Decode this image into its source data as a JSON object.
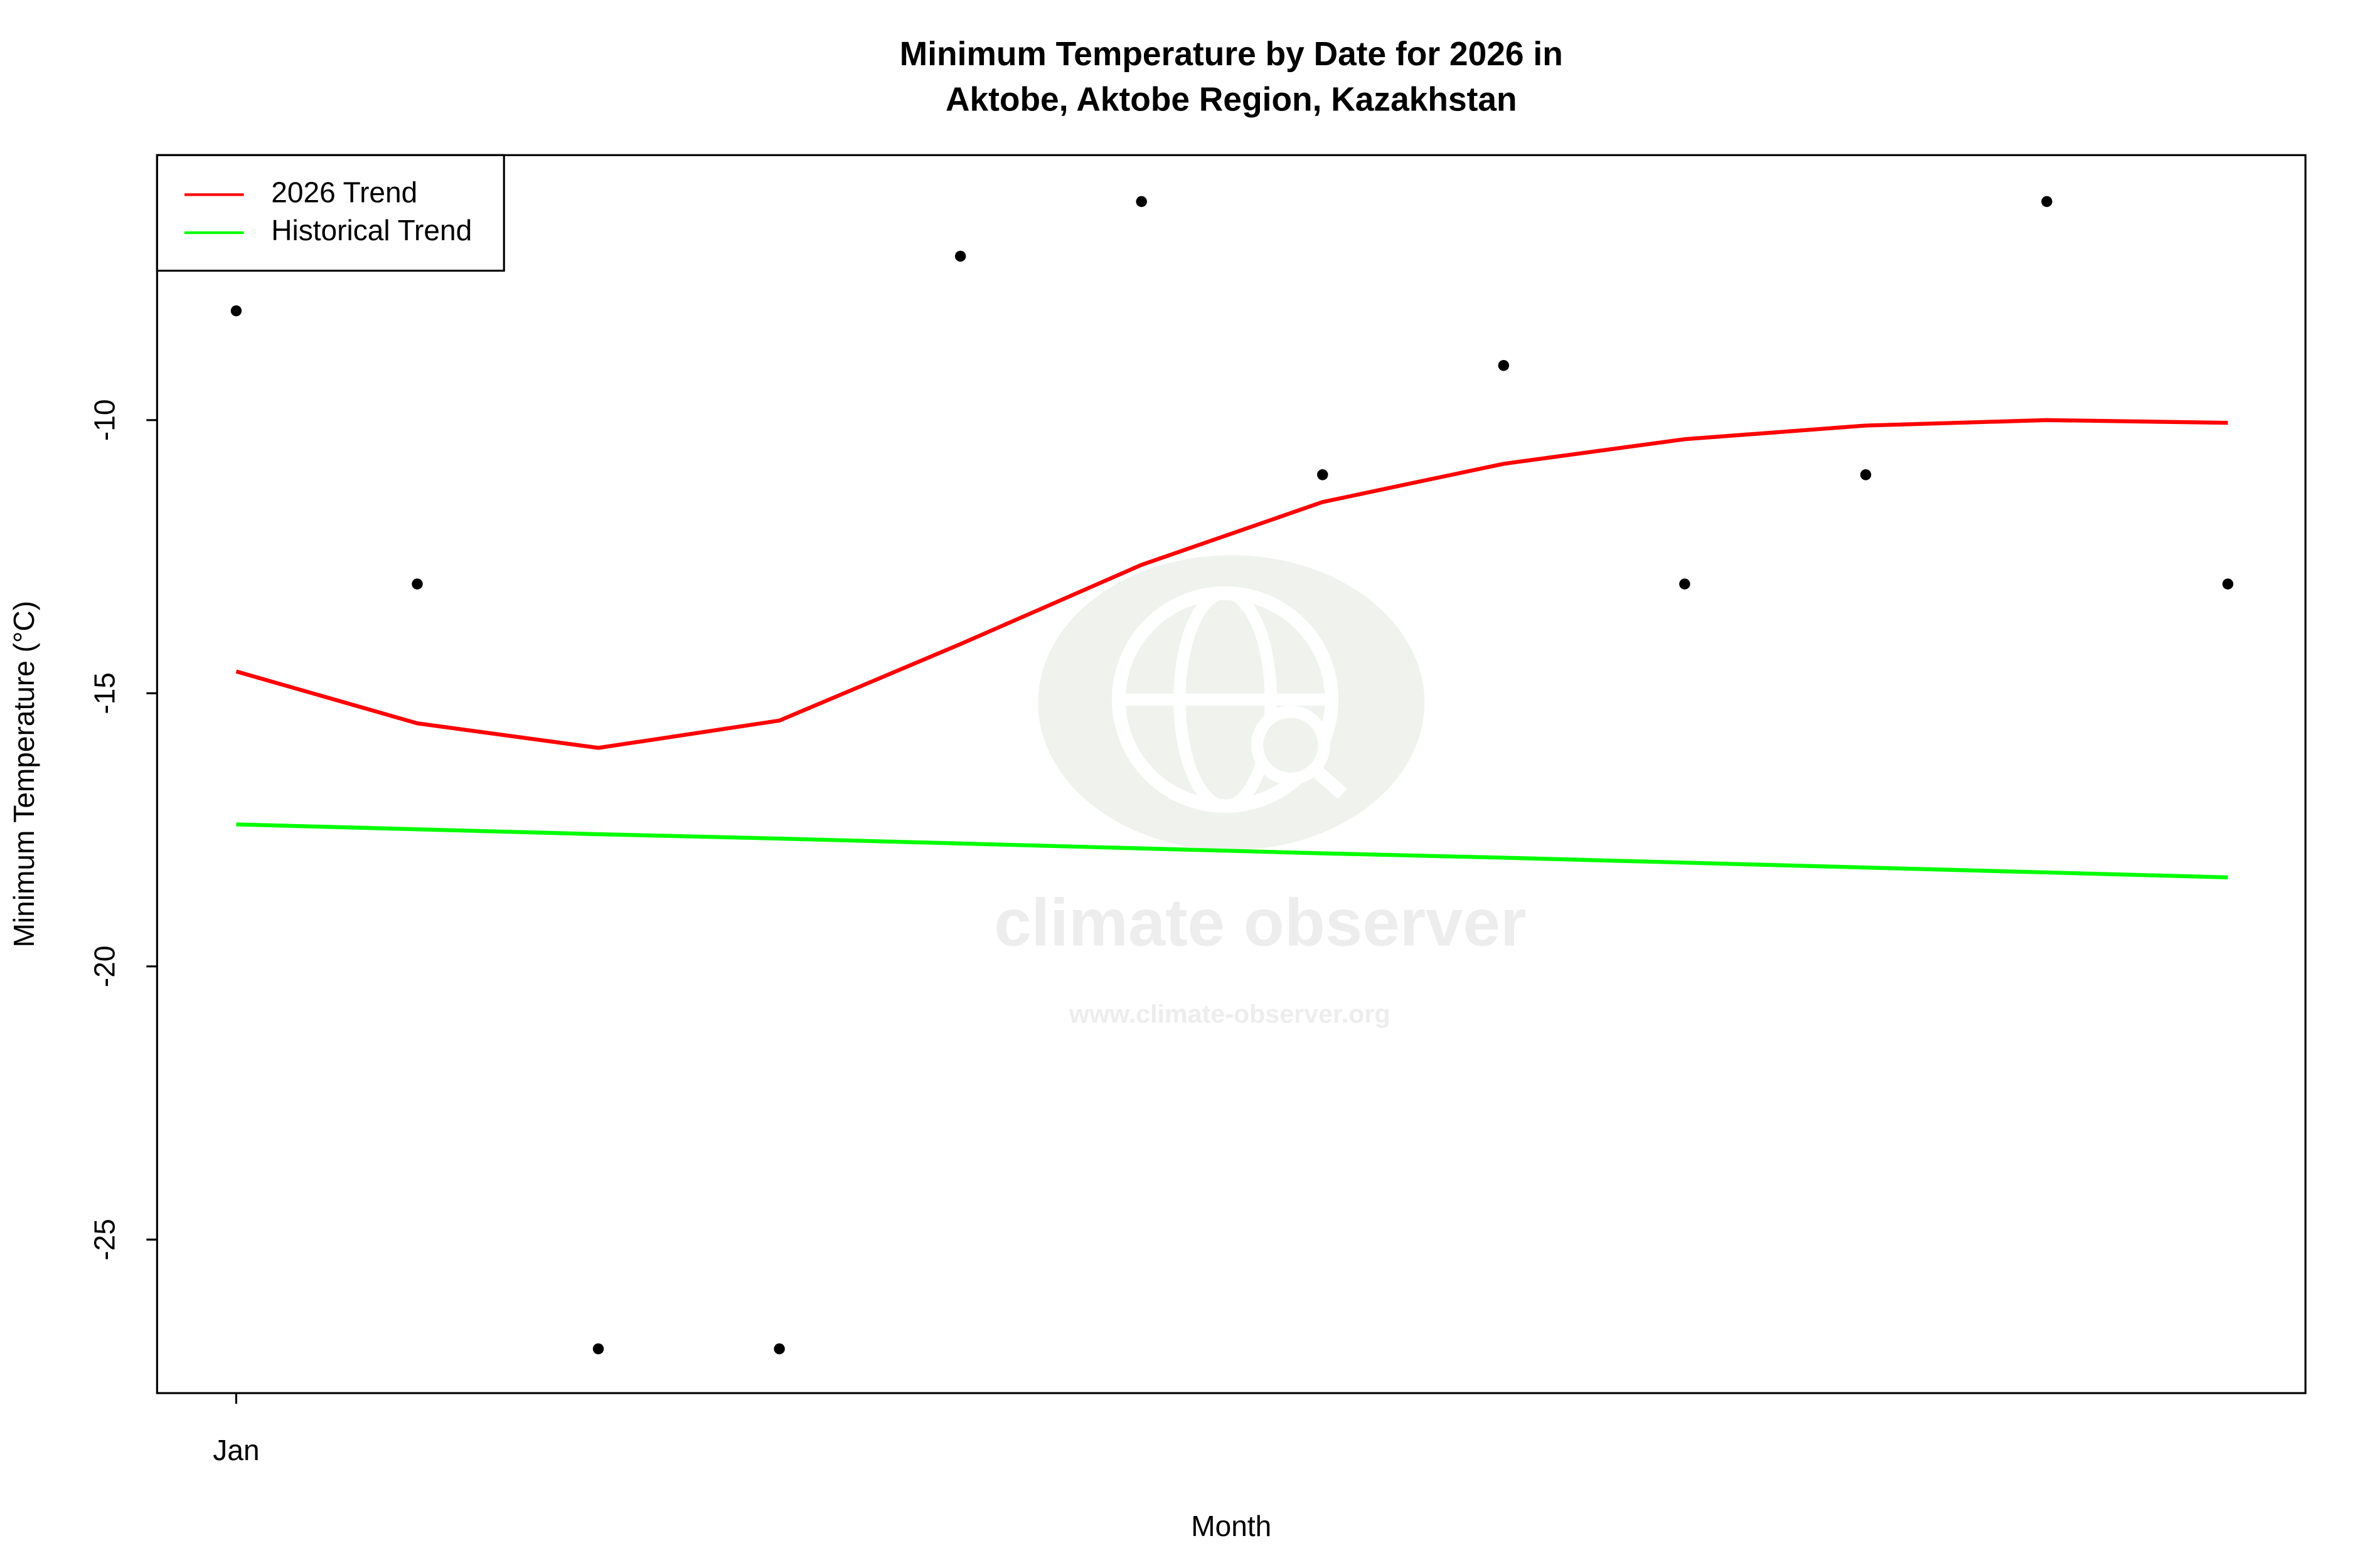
{
  "chart_data": {
    "type": "scatter",
    "title": [
      "Minimum Temperature by Date for 2026 in",
      "Aktobe, Aktobe Region, Kazakhstan"
    ],
    "x_label": "Month",
    "y_label": "Minimum Temperature (°C)",
    "categories": [
      "Jan",
      null,
      null,
      null,
      null,
      null,
      null,
      null,
      null,
      null,
      null,
      null
    ],
    "points": {
      "color": "#000000",
      "values": [
        -8,
        -13,
        -27,
        -27,
        -7,
        -6,
        -11,
        -9,
        -13,
        -11,
        -6,
        -13
      ]
    },
    "series": [
      {
        "name": "2026 Trend",
        "color": "#ff0000",
        "values": [
          -14.6,
          -15.55,
          -16.0,
          -15.5,
          -14.1,
          -12.65,
          -11.5,
          -10.8,
          -10.35,
          -10.1,
          -10.0,
          -10.05
        ]
      },
      {
        "name": "Historical Trend",
        "color": "#00ff00",
        "values": [
          -17.4,
          -17.49,
          -17.58,
          -17.66,
          -17.75,
          -17.84,
          -17.93,
          -18.01,
          -18.1,
          -18.19,
          -18.28,
          -18.37
        ]
      }
    ],
    "ylim": [
      -27.81,
      -5.15
    ],
    "yticks": [
      -25,
      -20,
      -15,
      -10
    ],
    "legend": "top-left",
    "watermark": {
      "title": "climate observer",
      "url": "www.climate-observer.org"
    }
  }
}
